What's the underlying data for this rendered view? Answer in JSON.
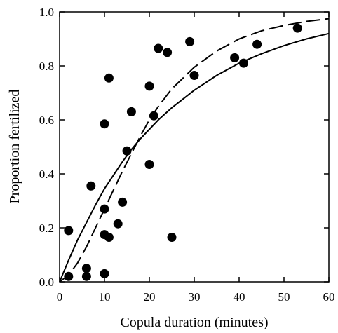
{
  "chart_data": {
    "type": "scatter",
    "title": "",
    "xlabel": "Copula duration (minutes)",
    "ylabel": "Proportion fertilized",
    "xlim": [
      0,
      60
    ],
    "ylim": [
      0,
      1.0
    ],
    "x_ticks": [
      0,
      10,
      20,
      30,
      40,
      50,
      60
    ],
    "x_tick_labels": [
      "0",
      "10",
      "20",
      "30",
      "40",
      "50",
      "60"
    ],
    "y_ticks": [
      0.0,
      0.2,
      0.4,
      0.6,
      0.8,
      1.0
    ],
    "y_tick_labels": [
      "0.0",
      "0.2",
      "0.4",
      "0.6",
      "0.8",
      "1.0"
    ],
    "grid": false,
    "legend": "none",
    "series": [
      {
        "type": "scatter",
        "marker": "filled-circle",
        "color": "#000000",
        "points": [
          {
            "x": 2.0,
            "y": 0.19
          },
          {
            "x": 2.0,
            "y": 0.02
          },
          {
            "x": 6.0,
            "y": 0.05
          },
          {
            "x": 6.0,
            "y": 0.02
          },
          {
            "x": 7.0,
            "y": 0.355
          },
          {
            "x": 10.0,
            "y": 0.03
          },
          {
            "x": 10.0,
            "y": 0.175
          },
          {
            "x": 10.0,
            "y": 0.27
          },
          {
            "x": 10.0,
            "y": 0.585
          },
          {
            "x": 11.0,
            "y": 0.165
          },
          {
            "x": 11.0,
            "y": 0.755
          },
          {
            "x": 13.0,
            "y": 0.215
          },
          {
            "x": 14.0,
            "y": 0.295
          },
          {
            "x": 15.0,
            "y": 0.485
          },
          {
            "x": 16.0,
            "y": 0.63
          },
          {
            "x": 20.0,
            "y": 0.435
          },
          {
            "x": 20.0,
            "y": 0.725
          },
          {
            "x": 21.0,
            "y": 0.615
          },
          {
            "x": 22.0,
            "y": 0.865
          },
          {
            "x": 24.0,
            "y": 0.85
          },
          {
            "x": 25.0,
            "y": 0.165
          },
          {
            "x": 29.0,
            "y": 0.89
          },
          {
            "x": 30.0,
            "y": 0.765
          },
          {
            "x": 39.0,
            "y": 0.83
          },
          {
            "x": 41.0,
            "y": 0.81
          },
          {
            "x": 44.0,
            "y": 0.88
          },
          {
            "x": 53.0,
            "y": 0.94
          }
        ]
      },
      {
        "type": "line",
        "style": "solid",
        "color": "#000000",
        "x": [
          0,
          2,
          4,
          6,
          8,
          10,
          12,
          14,
          16,
          18,
          20,
          22,
          25,
          30,
          35,
          40,
          45,
          50,
          55,
          60
        ],
        "values": [
          0.0,
          0.08,
          0.155,
          0.22,
          0.285,
          0.345,
          0.395,
          0.445,
          0.49,
          0.53,
          0.565,
          0.6,
          0.645,
          0.71,
          0.765,
          0.81,
          0.845,
          0.875,
          0.9,
          0.92
        ]
      },
      {
        "type": "line",
        "style": "dashed",
        "color": "#000000",
        "x": [
          0,
          2,
          4,
          6,
          8,
          10,
          12,
          14,
          16,
          18,
          20,
          22,
          25,
          30,
          35,
          40,
          45,
          50,
          55,
          60
        ],
        "values": [
          0.0,
          0.025,
          0.07,
          0.13,
          0.2,
          0.27,
          0.34,
          0.41,
          0.475,
          0.54,
          0.6,
          0.65,
          0.715,
          0.795,
          0.855,
          0.9,
          0.93,
          0.95,
          0.965,
          0.975
        ]
      }
    ]
  }
}
